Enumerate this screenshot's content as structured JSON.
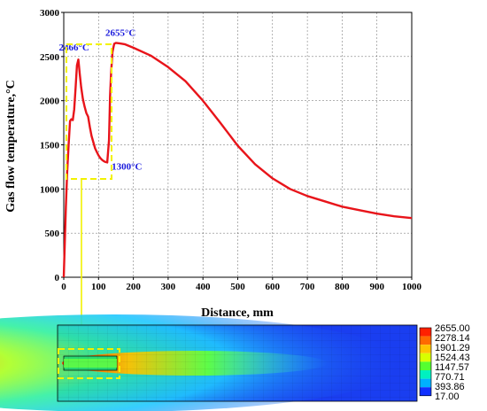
{
  "chart_data": {
    "type": "line",
    "xlabel": "Distance, mm",
    "ylabel": "Gas flow temperature,°C",
    "xlim": [
      0,
      1000
    ],
    "ylim": [
      0,
      3000
    ],
    "xticks": [
      "0",
      "100",
      "200",
      "300",
      "400",
      "500",
      "600",
      "700",
      "800",
      "900",
      "1000"
    ],
    "yticks": [
      "0",
      "500",
      "1000",
      "1500",
      "2000",
      "2500",
      "3000"
    ],
    "line_color": "#e8141a",
    "grid": true,
    "series": [
      {
        "x": [
          0,
          3,
          6,
          10,
          14,
          18,
          22,
          26,
          30,
          34,
          38,
          42,
          46,
          50,
          55,
          60,
          65,
          70,
          75,
          80,
          85,
          90,
          95,
          100,
          105,
          110,
          115,
          120,
          125,
          130,
          133,
          136,
          140,
          145,
          150,
          160,
          175,
          200,
          250,
          300,
          350,
          400,
          450,
          500,
          550,
          600,
          650,
          700,
          750,
          800,
          850,
          900,
          950,
          1000
        ],
        "y": [
          0,
          400,
          800,
          1200,
          1500,
          1770,
          1790,
          1780,
          1900,
          2150,
          2400,
          2466,
          2300,
          2150,
          2020,
          1930,
          1860,
          1820,
          1700,
          1600,
          1530,
          1460,
          1420,
          1380,
          1350,
          1330,
          1315,
          1305,
          1300,
          1550,
          2050,
          2300,
          2550,
          2645,
          2655,
          2650,
          2640,
          2600,
          2510,
          2380,
          2220,
          2000,
          1750,
          1490,
          1280,
          1120,
          1000,
          920,
          860,
          800,
          760,
          720,
          690,
          670
        ]
      }
    ],
    "annotations": [
      {
        "text": "2466°C",
        "x": 42,
        "y": 2466
      },
      {
        "text": "2655°C",
        "x": 150,
        "y": 2655
      },
      {
        "text": "1300°C",
        "x": 130,
        "y": 1300
      }
    ]
  },
  "colorbar": {
    "labels": [
      "2655.00",
      "2278.14",
      "1901.29",
      "1524.43",
      "1147.57",
      "770.71",
      "393.86",
      "17.00"
    ],
    "colors": [
      "#ff2000",
      "#ff6a00",
      "#ffc400",
      "#d8ff00",
      "#55ff30",
      "#00f0c0",
      "#00b0ff",
      "#1030ff"
    ]
  },
  "colors": {
    "highlight": "#f2f200",
    "contour_bg": "#1a3ef0"
  }
}
